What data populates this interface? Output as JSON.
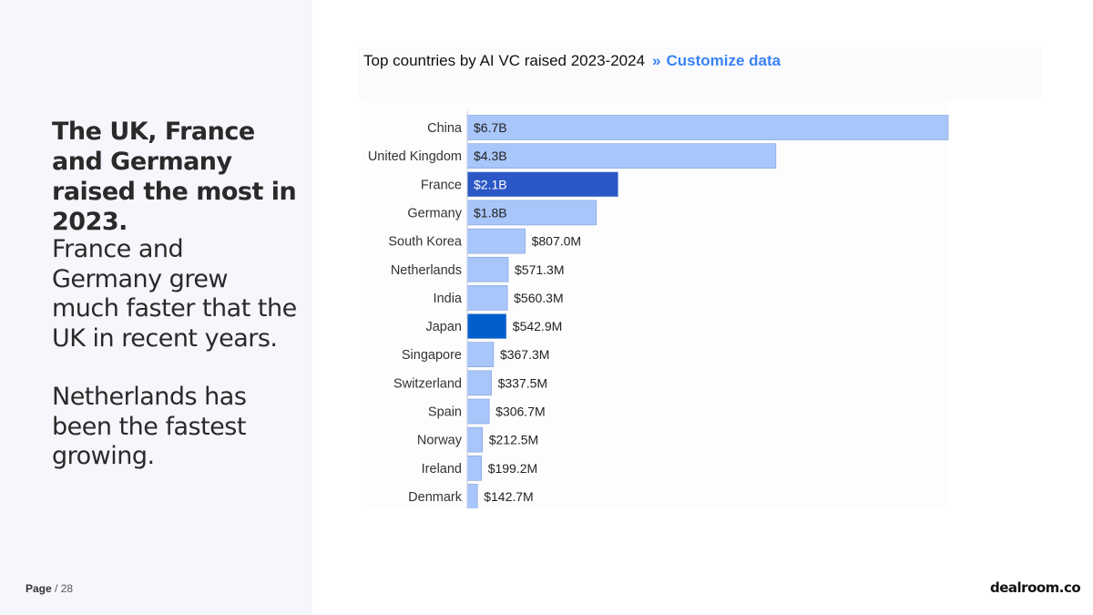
{
  "headline": "The UK, France and Germany raised the most in 2023.",
  "paragraph_1": "France and Germany grew much faster that the UK in recent years.",
  "paragraph_2": "Netherlands has been the fastest growing.",
  "footer": {
    "page_label": "Page",
    "page_number": "/ 28",
    "logo": "dealroom.co"
  },
  "chart_header": {
    "title": "Top countries by AI VC raised 2023-2024",
    "chevron": "»",
    "customize_link": "Customize data"
  },
  "colors": {
    "bar_default": "#a9c6fb",
    "bar_highlight_france": "#2c57c6",
    "bar_highlight_japan": "#005fcc",
    "link": "#3b82f6"
  },
  "chart_data": {
    "type": "bar",
    "orientation": "horizontal",
    "title": "Top countries by AI VC raised 2023-2024",
    "unit": "USD millions",
    "categories": [
      "China",
      "United Kingdom",
      "France",
      "Germany",
      "South Korea",
      "Netherlands",
      "India",
      "Japan",
      "Singapore",
      "Switzerland",
      "Spain",
      "Norway",
      "Ireland",
      "Denmark"
    ],
    "values": [
      6700,
      4300,
      2100,
      1800,
      807.0,
      571.3,
      560.3,
      542.9,
      367.3,
      337.5,
      306.7,
      212.5,
      199.2,
      142.7
    ],
    "value_labels": [
      "$6.7B",
      "$4.3B",
      "$2.1B",
      "$1.8B",
      "$807.0M",
      "$571.3M",
      "$560.3M",
      "$542.9M",
      "$367.3M",
      "$337.5M",
      "$306.7M",
      "$212.5M",
      "$199.2M",
      "$142.7M"
    ],
    "highlight": {
      "France": "#2c57c6",
      "Japan": "#005fcc"
    },
    "xlim": [
      0,
      6700
    ]
  }
}
